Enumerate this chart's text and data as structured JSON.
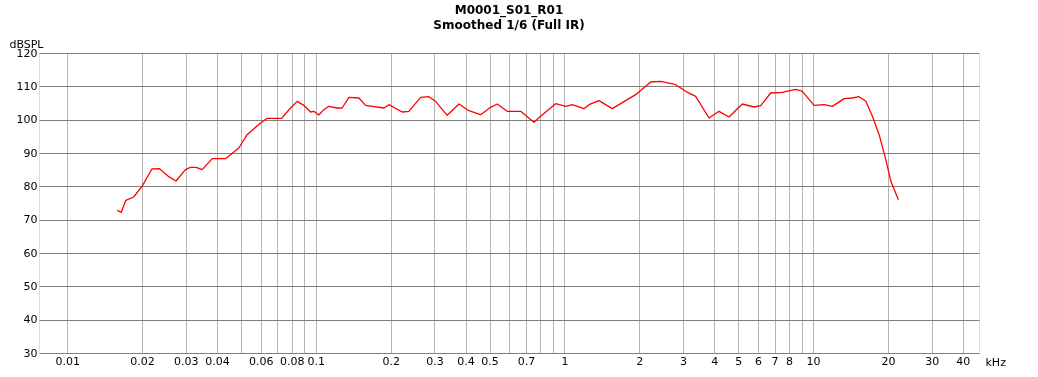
{
  "chart_data": {
    "type": "line",
    "title": "M0001_S01_R01",
    "subtitle": "Smoothed 1/6 (Full IR)",
    "xlabel": "kHz",
    "ylabel": "dBSPL",
    "log": "x",
    "grid": true,
    "marker": "none",
    "line_style": "solid",
    "xlim": [
      0.0077,
      46.5
    ],
    "xticks": [
      0.01,
      0.02,
      0.03,
      0.04,
      {
        "value": 0.05,
        "label": null
      },
      0.06,
      {
        "value": 0.07,
        "label": null
      },
      0.08,
      {
        "value": 0.09,
        "label": null
      },
      0.1,
      0.2,
      0.3,
      0.4,
      0.5,
      {
        "value": 0.6,
        "label": null
      },
      0.7,
      {
        "value": 0.8,
        "label": null
      },
      {
        "value": 0.9,
        "label": null
      },
      1,
      2,
      3,
      4,
      5,
      6,
      7,
      8,
      {
        "value": 9,
        "label": null
      },
      10,
      20,
      30,
      40
    ],
    "ylim": [
      30,
      120
    ],
    "yticks": [
      30,
      40,
      50,
      60,
      70,
      80,
      90,
      100,
      110,
      120
    ],
    "series": [
      {
        "color": "#ff0000",
        "x": [
          0.0159,
          0.0165,
          0.0172,
          0.0185,
          0.02,
          0.0219,
          0.0235,
          0.0255,
          0.0274,
          0.0299,
          0.0313,
          0.033,
          0.0349,
          0.0383,
          0.0433,
          0.049,
          0.0529,
          0.0599,
          0.0637,
          0.0728,
          0.0791,
          0.0841,
          0.0895,
          0.0952,
          0.0982,
          0.1028,
          0.1077,
          0.1128,
          0.1218,
          0.1276,
          0.1358,
          0.149,
          0.1585,
          0.1878,
          0.1967,
          0.2225,
          0.2367,
          0.2638,
          0.2849,
          0.3031,
          0.3376,
          0.3763,
          0.4128,
          0.46,
          0.5047,
          0.5365,
          0.5886,
          0.6666,
          0.7539,
          0.8022,
          0.9218,
          1.011,
          1.075,
          1.198,
          1.255,
          1.377,
          1.557,
          1.934,
          2.223,
          2.438,
          2.803,
          3.074,
          3.373,
          3.815,
          4.185,
          4.592,
          5.194,
          5.789,
          6.158,
          6.756,
          7.524,
          8.518,
          9.057,
          10.09,
          11.08,
          11.96,
          13.33,
          14.39,
          15.31,
          16.3,
          17.33,
          18.44,
          19.62,
          20.55,
          22.04
        ],
        "values": [
          72.8,
          72.2,
          75.8,
          76.8,
          80,
          85.2,
          85.3,
          83,
          81.6,
          85,
          85.7,
          85.7,
          85,
          88.3,
          88.3,
          91.5,
          95.5,
          99,
          100.4,
          100.4,
          103.5,
          105.5,
          104.3,
          102.3,
          102.5,
          101.4,
          103,
          104,
          103.5,
          103.5,
          106.7,
          106.5,
          104.3,
          103.5,
          104.5,
          102.3,
          102.5,
          106.7,
          106.9,
          105.5,
          101.3,
          104.7,
          102.7,
          101.5,
          103.7,
          104.7,
          102.5,
          102.5,
          99.2,
          101,
          104.8,
          104,
          104.5,
          103.3,
          104.5,
          105.7,
          103.3,
          107.5,
          111.3,
          111.5,
          110.5,
          108.5,
          107,
          100.5,
          102.5,
          100.8,
          104.7,
          103.8,
          104.2,
          108,
          108.2,
          109.1,
          108.5,
          104.3,
          104.5,
          104,
          106.3,
          106.5,
          106.9,
          105.5,
          101,
          95.5,
          88,
          81.5,
          76
        ]
      }
    ]
  }
}
